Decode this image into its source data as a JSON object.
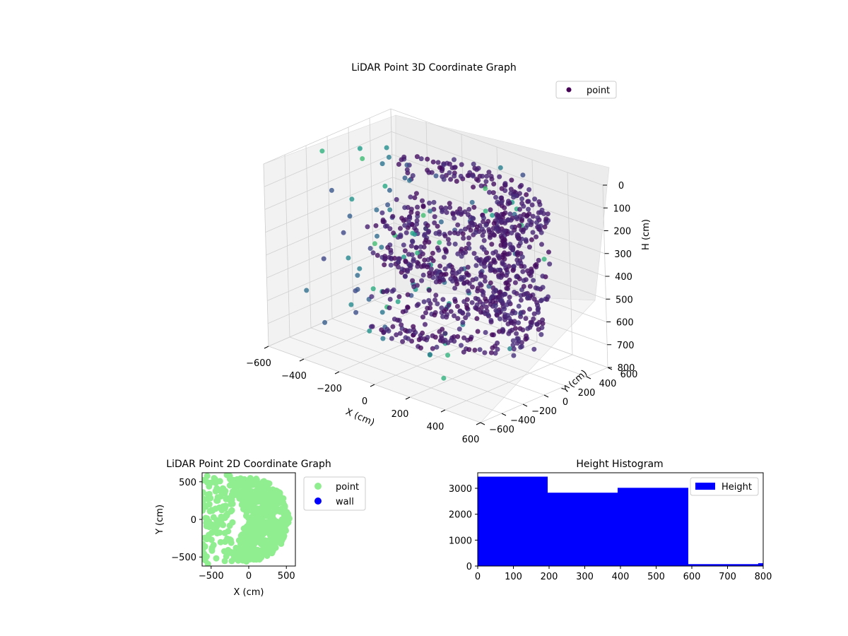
{
  "chart_data": [
    {
      "type": "scatter3d",
      "title": "LiDAR Point 3D Coordinate Graph",
      "xlabel": "X (cm)",
      "ylabel": "Y (cm)",
      "zlabel": "H (cm)",
      "xlim": [
        -600,
        600
      ],
      "ylim": [
        -600,
        600
      ],
      "zlim": [
        0,
        800
      ],
      "z_inverted": true,
      "x_ticks": [
        "−600",
        "−400",
        "−200",
        "0",
        "200",
        "400",
        "600"
      ],
      "y_ticks": [
        "−600",
        "−400",
        "−200",
        "0",
        "200",
        "400",
        "600"
      ],
      "z_ticks": [
        "0",
        "100",
        "200",
        "300",
        "400",
        "500",
        "600",
        "700",
        "800"
      ],
      "legend": {
        "position": "upper right",
        "entries": [
          {
            "label": "point",
            "color": "#440154"
          }
        ]
      },
      "colormap": "viridis",
      "grid": true
    },
    {
      "type": "scatter",
      "title": "LiDAR Point 2D Coordinate Graph",
      "xlabel": "X (cm)",
      "ylabel": "Y (cm)",
      "xlim": [
        -620,
        620
      ],
      "ylim": [
        -620,
        620
      ],
      "x_ticks": [
        "−500",
        "0",
        "500"
      ],
      "y_ticks": [
        "−500",
        "0",
        "500"
      ],
      "series": [
        {
          "name": "point",
          "color": "#90ee90"
        },
        {
          "name": "wall",
          "color": "#0000ff"
        }
      ],
      "legend": {
        "position": "outside right"
      }
    },
    {
      "type": "bar",
      "title": "Height Histogram",
      "xlim": [
        0,
        800
      ],
      "ylim": [
        0,
        3600
      ],
      "x_ticks": [
        "0",
        "100",
        "200",
        "300",
        "400",
        "500",
        "600",
        "700",
        "800"
      ],
      "y_ticks": [
        "0",
        "1000",
        "2000",
        "3000"
      ],
      "series": [
        {
          "name": "Height",
          "color": "#0000ff",
          "bins": [
            {
              "from": 0,
              "to": 196,
              "count": 3450
            },
            {
              "from": 196,
              "to": 392,
              "count": 2830
            },
            {
              "from": 392,
              "to": 590,
              "count": 3020
            },
            {
              "from": 590,
              "to": 786,
              "count": 75
            },
            {
              "from": 786,
              "to": 800,
              "count": 110
            }
          ]
        }
      ],
      "legend": {
        "position": "upper right"
      }
    }
  ]
}
